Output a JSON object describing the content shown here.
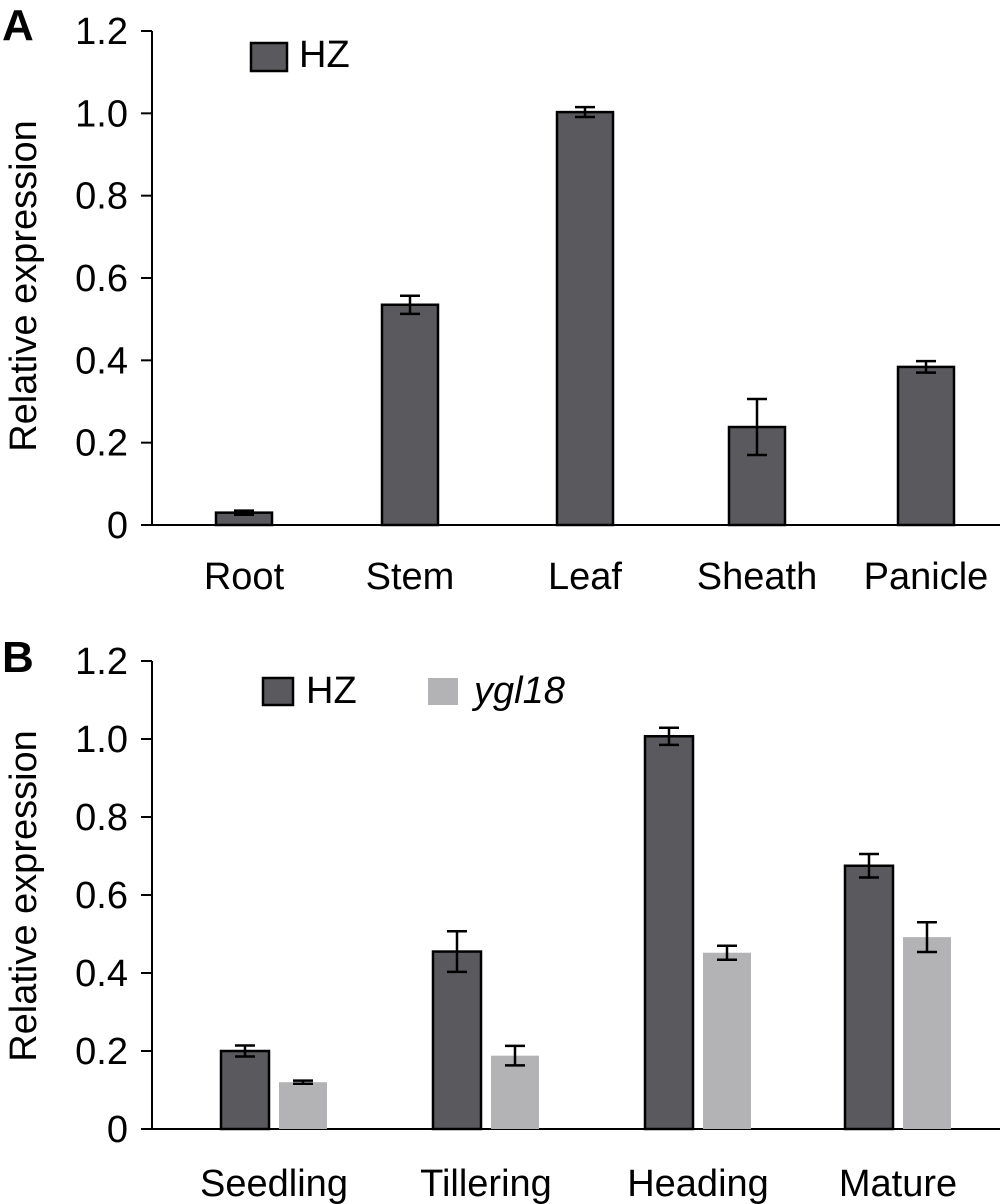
{
  "colors": {
    "HZ": "#5a5a5e",
    "ygl18": "#b3b3b6",
    "bar_stroke": "#000000",
    "axis": "#000000"
  },
  "chart_data": [
    {
      "panel": "A",
      "type": "bar",
      "ylabel": "Relative expression",
      "ylim": [
        0,
        1.2
      ],
      "yticks": [
        "0",
        "0.2",
        "0.4",
        "0.6",
        "0.8",
        "1.0",
        "1.2"
      ],
      "categories": [
        "Root",
        "Stem",
        "Leaf",
        "Sheath",
        "Panicle"
      ],
      "legend_placement": "top-left",
      "series": [
        {
          "name": "HZ",
          "color_key": "HZ",
          "values": [
            0.03,
            0.535,
            1.003,
            0.238,
            0.384
          ],
          "errors": [
            0.005,
            0.022,
            0.012,
            0.068,
            0.014
          ]
        }
      ]
    },
    {
      "panel": "B",
      "type": "bar",
      "ylabel": "Relative expression",
      "ylim": [
        0,
        1.2
      ],
      "yticks": [
        "0",
        "0.2",
        "0.4",
        "0.6",
        "0.8",
        "1.0",
        "1.2"
      ],
      "categories": [
        "Seedling",
        "Tillering",
        "Heading",
        "Mature"
      ],
      "legend_placement": "top-left",
      "series": [
        {
          "name": "HZ",
          "color_key": "HZ",
          "values": [
            0.2,
            0.455,
            1.007,
            0.675
          ],
          "errors": [
            0.014,
            0.052,
            0.022,
            0.03
          ]
        },
        {
          "name": "ygl18",
          "italic": true,
          "color_key": "ygl18",
          "values": [
            0.12,
            0.188,
            0.452,
            0.492
          ],
          "errors": [
            0.004,
            0.025,
            0.018,
            0.038
          ]
        }
      ]
    }
  ]
}
